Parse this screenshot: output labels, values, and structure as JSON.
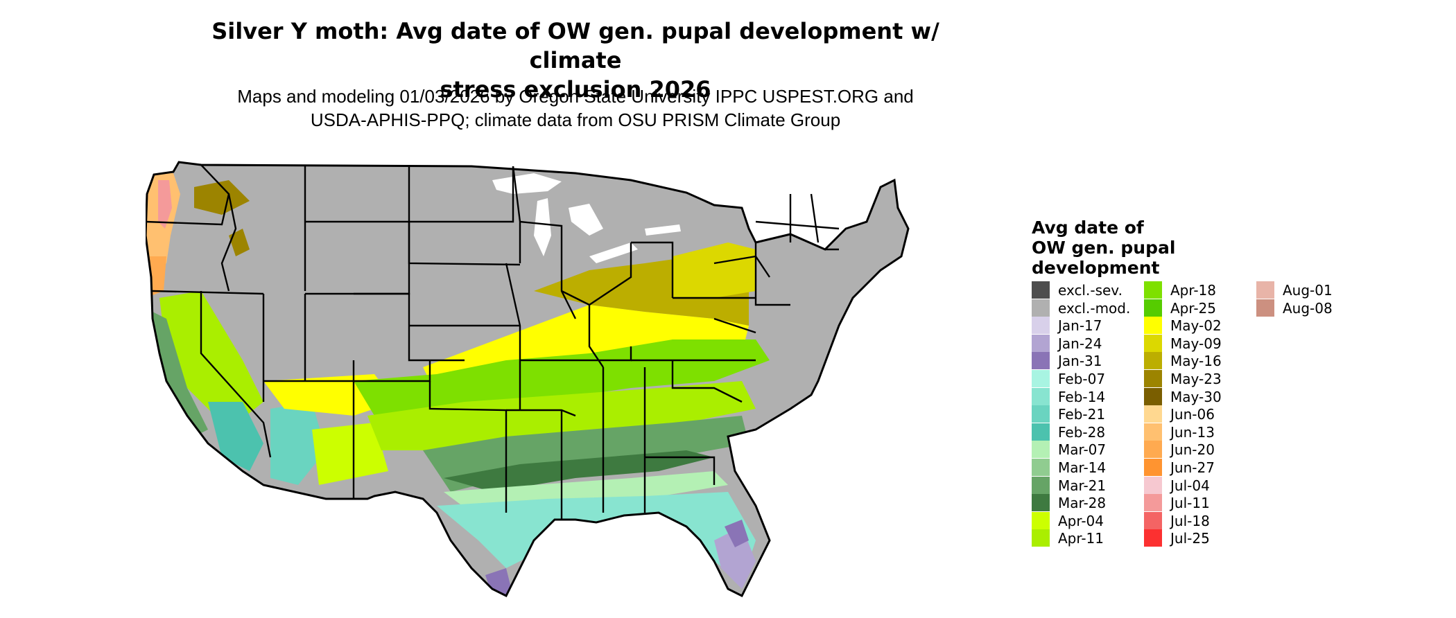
{
  "title_line1": "Silver Y moth: Avg date of OW gen. pupal development w/ climate",
  "title_line2": "stress exclusion 2026",
  "subtitle_line1": "Maps and modeling 01/03/2026 by Oregon State University IPPC USPEST.ORG and",
  "subtitle_line2": "USDA-APHIS-PPQ; climate data from OSU PRISM Climate Group",
  "legend": {
    "title_line1": "Avg date of",
    "title_line2": "OW gen. pupal",
    "title_line3": "development",
    "items": [
      {
        "label": "excl.-sev.",
        "color": "#4d4d4d"
      },
      {
        "label": "excl.-mod.",
        "color": "#b0b0b0"
      },
      {
        "label": "Jan-17",
        "color": "#d8d0ea"
      },
      {
        "label": "Jan-24",
        "color": "#b2a4d2"
      },
      {
        "label": "Jan-31",
        "color": "#8a74b6"
      },
      {
        "label": "Feb-07",
        "color": "#a8f4e2"
      },
      {
        "label": "Feb-14",
        "color": "#88e4d0"
      },
      {
        "label": "Feb-21",
        "color": "#6ad4c0"
      },
      {
        "label": "Feb-28",
        "color": "#4cc2ae"
      },
      {
        "label": "Mar-07",
        "color": "#b4f0b4"
      },
      {
        "label": "Mar-14",
        "color": "#90cc90"
      },
      {
        "label": "Mar-21",
        "color": "#66a466"
      },
      {
        "label": "Mar-28",
        "color": "#3e7a40"
      },
      {
        "label": "Apr-04",
        "color": "#ccff00"
      },
      {
        "label": "Apr-11",
        "color": "#aaee00"
      },
      {
        "label": "Apr-18",
        "color": "#7ee000"
      },
      {
        "label": "Apr-25",
        "color": "#56cc00"
      },
      {
        "label": "May-02",
        "color": "#ffff00"
      },
      {
        "label": "May-09",
        "color": "#dcd800"
      },
      {
        "label": "May-16",
        "color": "#bcae00"
      },
      {
        "label": "May-23",
        "color": "#9c8400"
      },
      {
        "label": "May-30",
        "color": "#7a5e00"
      },
      {
        "label": "Jun-06",
        "color": "#ffd890"
      },
      {
        "label": "Jun-13",
        "color": "#ffc070"
      },
      {
        "label": "Jun-20",
        "color": "#ffaa50"
      },
      {
        "label": "Jun-27",
        "color": "#ff9430"
      },
      {
        "label": "Jul-04",
        "color": "#f6c8d0"
      },
      {
        "label": "Jul-11",
        "color": "#f49a9a"
      },
      {
        "label": "Jul-18",
        "color": "#f46464"
      },
      {
        "label": "Jul-25",
        "color": "#fc3030"
      },
      {
        "label": "Aug-01",
        "color": "#e8b4a8"
      },
      {
        "label": "Aug-08",
        "color": "#cc9080"
      }
    ]
  }
}
